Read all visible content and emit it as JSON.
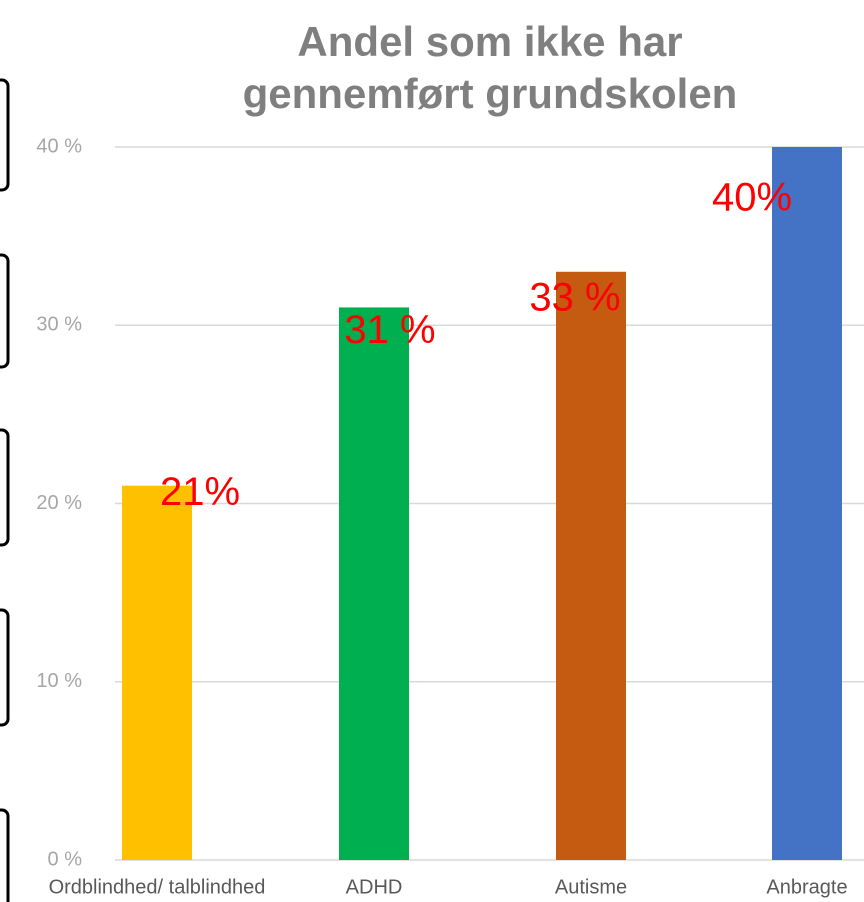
{
  "chart_data": {
    "type": "bar",
    "title": [
      "Andel som ikke har",
      "gennemført grundskolen"
    ],
    "categories": [
      "Ordblindhed/ talblindhed",
      "ADHD",
      "Autisme",
      "Anbragte"
    ],
    "values": [
      21,
      31,
      33,
      40
    ],
    "value_labels": [
      "21%",
      "31 %",
      "33 %",
      "40%"
    ],
    "colors": [
      "#ffc000",
      "#00b050",
      "#c55a11",
      "#4472c4"
    ],
    "ylim": [
      0,
      40
    ],
    "yticks": [
      {
        "value": 0,
        "label": "0 %"
      },
      {
        "value": 10,
        "label": "10 %"
      },
      {
        "value": 20,
        "label": "20 %"
      },
      {
        "value": 30,
        "label": "30 %"
      },
      {
        "value": 40,
        "label": "40 %"
      }
    ],
    "grid": true
  }
}
